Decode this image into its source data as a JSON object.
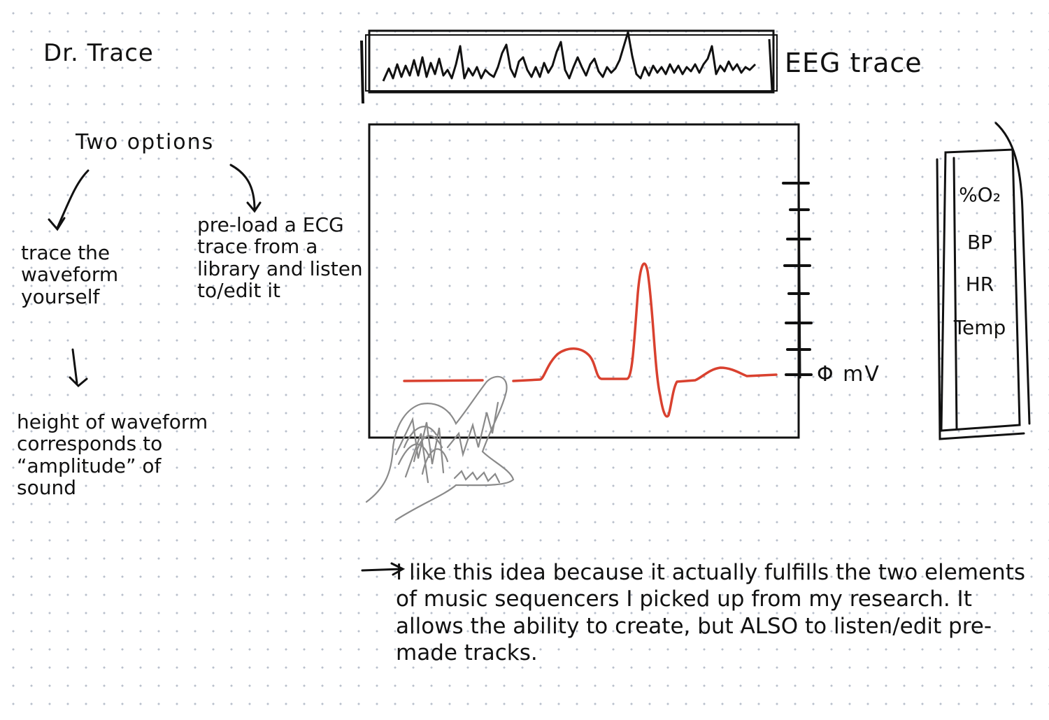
{
  "title": "Dr. Trace",
  "eeg_label": "EEG trace",
  "options_heading": "Two options",
  "option_trace": "trace the waveform yourself",
  "option_preload": "pre-load a ECG trace from a library and listen to/edit it",
  "height_note": "height of waveform corresponds to “amplitude” of sound",
  "zero_label": "Φ mV",
  "vitals": [
    "%O₂",
    "BP",
    "HR",
    "Temp"
  ],
  "reflection": "I like this idea because it actually fulfills the two elements of music sequencers I picked up from my research. It allows the ability to create, but ALSO to listen/edit pre-made tracks.",
  "colors": {
    "ink": "#111111",
    "trace": "#d9412f",
    "hand": "#8a8a8a",
    "dots": "#b9c0cc"
  }
}
